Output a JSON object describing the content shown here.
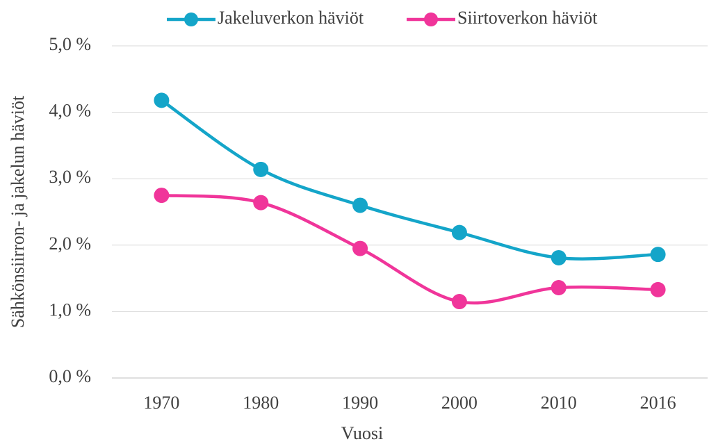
{
  "chart_data": {
    "type": "line",
    "x_label": "Vuosi",
    "y_label": "Sähkönsiirron- ja jakelun häviöt",
    "categories": [
      "1970",
      "1980",
      "1990",
      "2000",
      "2010",
      "2016"
    ],
    "series": [
      {
        "name": "Jakeluverkon häviöt",
        "color": "#14a5c9",
        "values": [
          4.18,
          3.14,
          2.6,
          2.19,
          1.81,
          1.86
        ]
      },
      {
        "name": "Siirtoverkon häviöt",
        "color": "#f0359a",
        "values": [
          2.75,
          2.64,
          1.95,
          1.15,
          1.36,
          1.33
        ]
      }
    ],
    "ylim": [
      0,
      5
    ],
    "yticks": [
      {
        "value": 0,
        "label": "0,0 %"
      },
      {
        "value": 1,
        "label": "1,0 %"
      },
      {
        "value": 2,
        "label": "2,0 %"
      },
      {
        "value": 3,
        "label": "3,0 %"
      },
      {
        "value": 4,
        "label": "4,0 %"
      },
      {
        "value": 5,
        "label": "5,0 %"
      }
    ],
    "grid": true,
    "legend": "top"
  }
}
